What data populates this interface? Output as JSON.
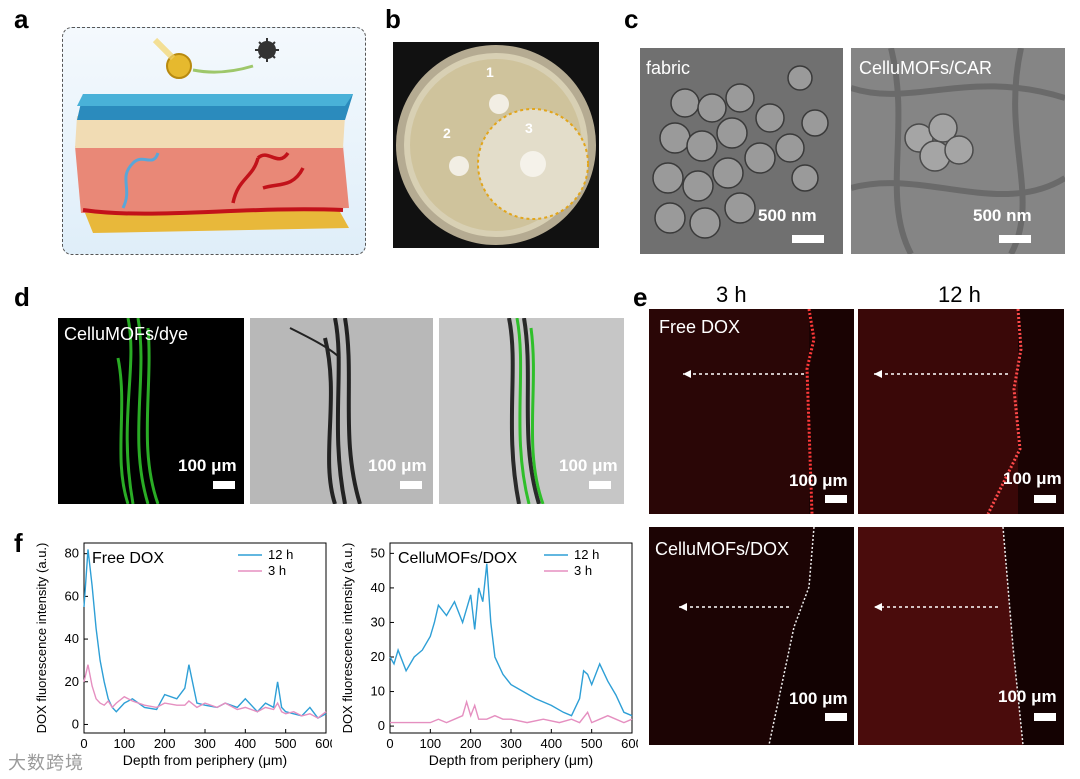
{
  "panels": {
    "a": {
      "label": "a"
    },
    "b": {
      "label": "b",
      "markers": [
        "1",
        "2",
        "3"
      ]
    },
    "c": {
      "label": "c",
      "left_caption": "fabric",
      "right_caption": "CelluMOFs/CAR",
      "scale": "500 nm"
    },
    "d": {
      "label": "d",
      "caption": "CelluMOFs/dye",
      "scale": "100 μm"
    },
    "e": {
      "label": "e",
      "col_headers": [
        "3 h",
        "12 h"
      ],
      "row_captions": [
        "Free DOX",
        "CelluMOFs/DOX"
      ],
      "scale": "100 μm"
    },
    "f": {
      "label": "f"
    }
  },
  "chart_data": [
    {
      "type": "line",
      "title": "Free DOX",
      "xlabel": "Depth from periphery (μm)",
      "ylabel": "DOX fluorescence intensity (a.u.)",
      "xlim": [
        0,
        600
      ],
      "ylim": [
        -4,
        85
      ],
      "xticks": [
        0,
        100,
        200,
        300,
        400,
        500,
        600
      ],
      "yticks": [
        0,
        20,
        40,
        60,
        80
      ],
      "legend_position": "top-right",
      "colors": {
        "12 h": "#2e9fd6",
        "3 h": "#e58fc0"
      },
      "series": [
        {
          "name": "12 h",
          "x": [
            0,
            10,
            20,
            30,
            40,
            50,
            60,
            70,
            80,
            100,
            120,
            150,
            180,
            200,
            230,
            250,
            260,
            280,
            300,
            330,
            350,
            380,
            400,
            430,
            450,
            470,
            480,
            490,
            500,
            520,
            540,
            560,
            580,
            600
          ],
          "y": [
            55,
            82,
            65,
            45,
            30,
            20,
            12,
            8,
            6,
            10,
            12,
            8,
            7,
            14,
            12,
            17,
            28,
            10,
            9,
            8,
            10,
            8,
            12,
            6,
            10,
            8,
            20,
            8,
            6,
            5,
            4,
            8,
            3,
            5
          ]
        },
        {
          "name": "3 h",
          "x": [
            0,
            10,
            20,
            30,
            40,
            50,
            60,
            70,
            80,
            100,
            120,
            150,
            180,
            200,
            230,
            250,
            260,
            280,
            300,
            330,
            350,
            380,
            400,
            430,
            450,
            470,
            480,
            490,
            500,
            520,
            540,
            560,
            580,
            600
          ],
          "y": [
            20,
            28,
            18,
            12,
            10,
            9,
            11,
            8,
            10,
            13,
            11,
            9,
            8,
            10,
            9,
            9,
            11,
            8,
            10,
            8,
            10,
            7,
            8,
            6,
            8,
            7,
            10,
            6,
            5,
            6,
            4,
            5,
            3,
            6
          ]
        }
      ]
    },
    {
      "type": "line",
      "title": "CelluMOFs/DOX",
      "xlabel": "Depth from periphery (μm)",
      "ylabel": "DOX fluorescence intensity (a.u.)",
      "xlim": [
        0,
        600
      ],
      "ylim": [
        -2,
        53
      ],
      "xticks": [
        0,
        100,
        200,
        300,
        400,
        500,
        600
      ],
      "yticks": [
        0,
        10,
        20,
        30,
        40,
        50
      ],
      "legend_position": "top-right",
      "colors": {
        "12 h": "#2e9fd6",
        "3 h": "#e58fc0"
      },
      "series": [
        {
          "name": "12 h",
          "x": [
            0,
            10,
            20,
            40,
            60,
            80,
            100,
            110,
            120,
            140,
            160,
            180,
            200,
            210,
            220,
            230,
            240,
            250,
            260,
            280,
            300,
            330,
            360,
            400,
            430,
            450,
            470,
            480,
            490,
            500,
            520,
            540,
            560,
            580,
            600
          ],
          "y": [
            20,
            18,
            22,
            16,
            20,
            22,
            26,
            30,
            35,
            32,
            36,
            30,
            38,
            28,
            40,
            36,
            47,
            30,
            20,
            15,
            12,
            10,
            8,
            6,
            4,
            3,
            8,
            16,
            15,
            12,
            18,
            13,
            9,
            4,
            3
          ]
        },
        {
          "name": "3 h",
          "x": [
            0,
            20,
            40,
            60,
            80,
            100,
            120,
            140,
            160,
            180,
            190,
            200,
            210,
            220,
            240,
            260,
            280,
            300,
            340,
            380,
            420,
            450,
            470,
            490,
            500,
            520,
            540,
            560,
            580,
            600
          ],
          "y": [
            1,
            1,
            1,
            1,
            1,
            1,
            2,
            1,
            2,
            3,
            7,
            3,
            6,
            2,
            2,
            3,
            2,
            2,
            1,
            2,
            1,
            2,
            1,
            4,
            1,
            2,
            3,
            2,
            1,
            2
          ]
        }
      ]
    }
  ],
  "watermark": "大数跨境"
}
